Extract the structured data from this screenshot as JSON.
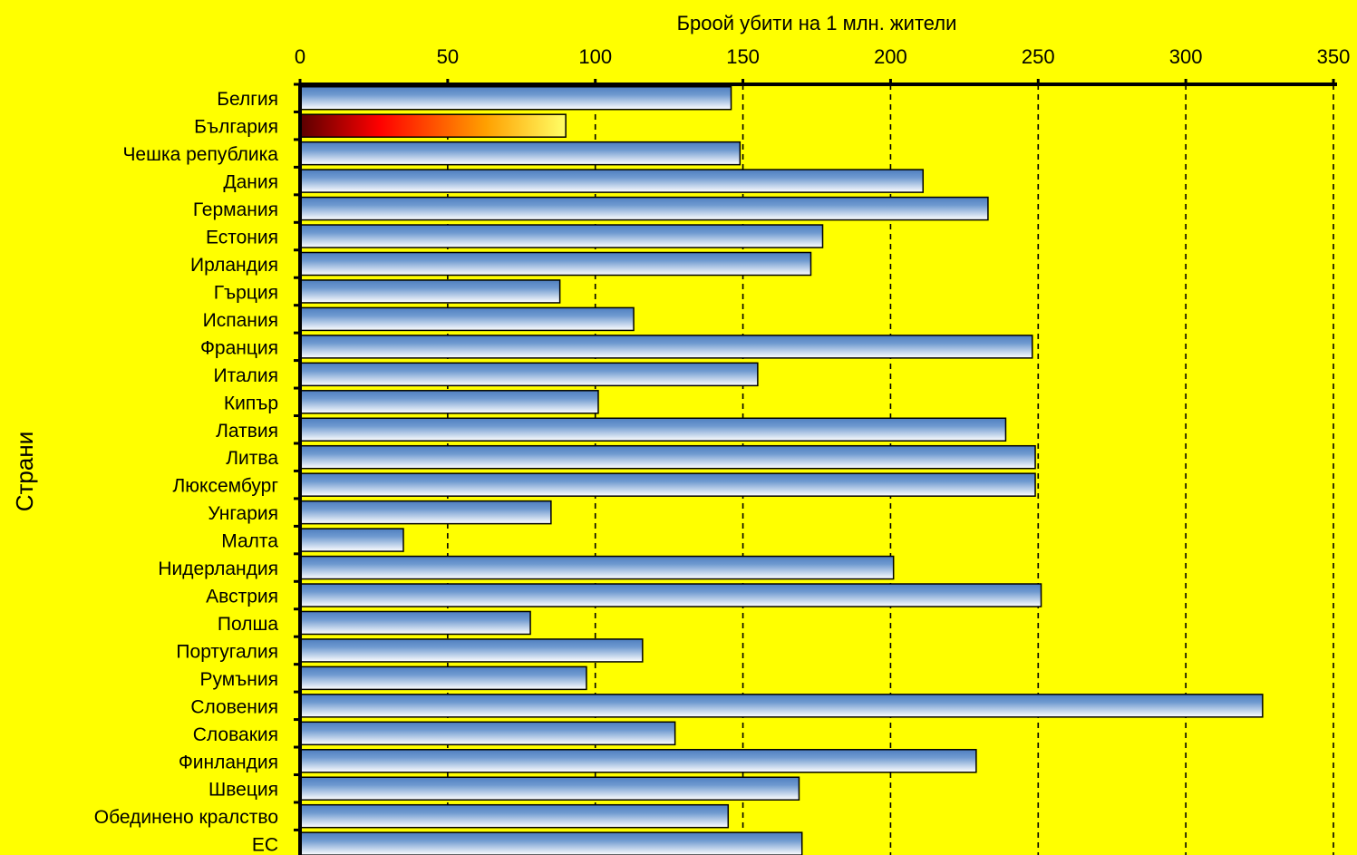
{
  "chart_data": {
    "type": "bar",
    "orientation": "horizontal",
    "title": "",
    "xlabel": "Броой убити на 1 млн. жители",
    "ylabel": "Страни",
    "xlim": [
      0,
      350
    ],
    "x_ticks": [
      0,
      50,
      100,
      150,
      200,
      250,
      300,
      350
    ],
    "x_axis_position": "top",
    "grid": "vertical dashed",
    "legend": "none",
    "categories": [
      "Белгия",
      "България",
      "Чешка република",
      "Дания",
      "Германия",
      "Естония",
      "Ирландия",
      "Гърция",
      "Испания",
      "Франция",
      "Италия",
      "Кипър",
      "Латвия",
      "Литва",
      "Люксембург",
      "Унгария",
      "Малта",
      "Нидерландия",
      "Австрия",
      "Полша",
      "Португалия",
      "Румъния",
      "Словения",
      "Словакия",
      "Финландия",
      "Швеция",
      "Обединено кралство",
      "ЕС"
    ],
    "values": [
      146,
      90,
      149,
      211,
      233,
      177,
      173,
      88,
      113,
      248,
      155,
      101,
      239,
      249,
      249,
      85,
      35,
      201,
      251,
      78,
      116,
      97,
      326,
      127,
      229,
      169,
      145,
      170
    ],
    "highlighted_category": "България",
    "colors": {
      "background": "#ffff00",
      "bar_gradient": [
        "#4f81bd",
        "#ffffff"
      ],
      "highlight_gradient": [
        "#5a0000",
        "#ff0000",
        "#ffa000",
        "#ffff66"
      ],
      "grid": "#000000"
    }
  }
}
